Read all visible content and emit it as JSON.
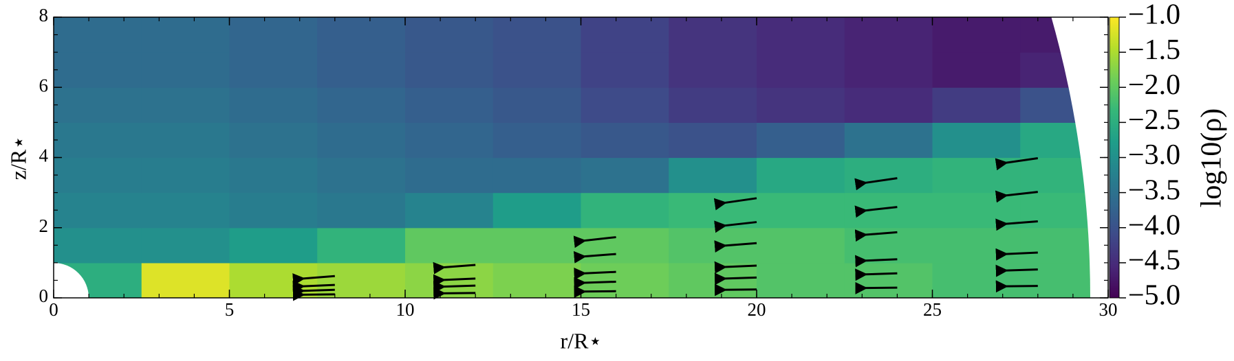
{
  "chart_data": {
    "type": "heatmap",
    "xlabel": "r/R⋆",
    "ylabel": "z/R⋆",
    "xlim": [
      0,
      30
    ],
    "ylim": [
      0,
      8
    ],
    "xticks": [
      0,
      5,
      10,
      15,
      20,
      25,
      30
    ],
    "yticks": [
      0,
      2,
      4,
      6,
      8
    ],
    "colormap": "viridis",
    "colorbar": {
      "label": "log10(ρ)",
      "clim": [
        -5,
        -1
      ],
      "ticks": [
        {
          "value": -1,
          "label": "−1.0"
        },
        {
          "value": -1.5,
          "label": "−1.5"
        },
        {
          "value": -2,
          "label": "−2.0"
        },
        {
          "value": -2.5,
          "label": "−2.5"
        },
        {
          "value": -3,
          "label": "−3.0"
        },
        {
          "value": -3.5,
          "label": "−3.5"
        },
        {
          "value": -4,
          "label": "−4.0"
        },
        {
          "value": -4.5,
          "label": "−4.5"
        },
        {
          "value": -5,
          "label": "−5.0"
        }
      ]
    },
    "x_edges": [
      0,
      2.5,
      5,
      7.5,
      10,
      12.5,
      15,
      17.5,
      20,
      22.5,
      25,
      27.5,
      30
    ],
    "y_edges": [
      0,
      1,
      2,
      3,
      4,
      5,
      6,
      7,
      8
    ],
    "z": [
      [
        -2.5,
        -1.2,
        -1.5,
        -1.6,
        -1.7,
        -1.8,
        -1.9,
        -2.0,
        -2.1,
        -2.1,
        -2.2,
        -2.2
      ],
      [
        -3.0,
        -3.0,
        -2.8,
        -2.4,
        -2.0,
        -2.0,
        -2.0,
        -2.1,
        -2.1,
        -2.2,
        -2.2,
        -2.2
      ],
      [
        -3.2,
        -3.2,
        -3.3,
        -3.4,
        -3.2,
        -2.8,
        -2.4,
        -2.3,
        -2.3,
        -2.3,
        -2.3,
        -2.3
      ],
      [
        -3.3,
        -3.3,
        -3.4,
        -3.5,
        -3.6,
        -3.6,
        -3.5,
        -3.0,
        -2.6,
        -2.5,
        -2.4,
        -2.4
      ],
      [
        -3.4,
        -3.4,
        -3.5,
        -3.6,
        -3.7,
        -3.8,
        -3.9,
        -4.0,
        -3.8,
        -3.5,
        -3.0,
        -2.6
      ],
      [
        -3.5,
        -3.5,
        -3.6,
        -3.7,
        -3.8,
        -3.9,
        -4.1,
        -4.3,
        -4.4,
        -4.5,
        -4.3,
        -4.0
      ],
      [
        -3.6,
        -3.6,
        -3.7,
        -3.8,
        -3.9,
        -4.0,
        -4.2,
        -4.4,
        -4.5,
        -4.6,
        -4.7,
        -4.6
      ],
      [
        -3.6,
        -3.6,
        -3.7,
        -3.8,
        -3.9,
        -4.0,
        -4.2,
        -4.4,
        -4.5,
        -4.6,
        -4.7,
        -4.7
      ]
    ],
    "quiver": {
      "color": "#000000",
      "x": [
        8,
        12,
        16,
        20,
        24,
        28,
        8,
        12,
        16,
        20,
        24,
        28,
        8,
        12,
        16,
        20,
        24,
        28,
        8,
        12,
        16,
        20,
        24,
        28,
        16,
        20,
        24,
        28,
        20,
        24,
        28
      ],
      "y": [
        0.1,
        0.14,
        0.19,
        0.24,
        0.29,
        0.34,
        0.23,
        0.35,
        0.46,
        0.58,
        0.7,
        0.81,
        0.37,
        0.55,
        0.74,
        0.92,
        1.1,
        1.29,
        0.62,
        0.94,
        1.25,
        1.56,
        1.87,
        2.18,
        1.73,
        2.16,
        2.59,
        3.02,
        2.84,
        3.41,
        3.98
      ],
      "u": [
        -0.9,
        -0.9,
        -0.9,
        -0.9,
        -0.9,
        -0.9,
        -0.9,
        -0.9,
        -0.9,
        -0.9,
        -0.9,
        -0.9,
        -0.9,
        -0.9,
        -0.9,
        -0.9,
        -0.9,
        -0.9,
        -0.9,
        -0.9,
        -0.9,
        -0.9,
        -0.9,
        -0.9,
        -0.9,
        -0.9,
        -0.9,
        -0.9,
        -0.9,
        -0.9,
        -0.9
      ],
      "v": [
        -0.01,
        -0.01,
        -0.01,
        -0.01,
        -0.01,
        -0.01,
        -0.03,
        -0.03,
        -0.03,
        -0.03,
        -0.03,
        -0.03,
        -0.04,
        -0.04,
        -0.04,
        -0.04,
        -0.04,
        -0.04,
        -0.07,
        -0.07,
        -0.07,
        -0.07,
        -0.07,
        -0.07,
        -0.1,
        -0.1,
        -0.1,
        -0.1,
        -0.13,
        -0.13,
        -0.13
      ]
    }
  }
}
